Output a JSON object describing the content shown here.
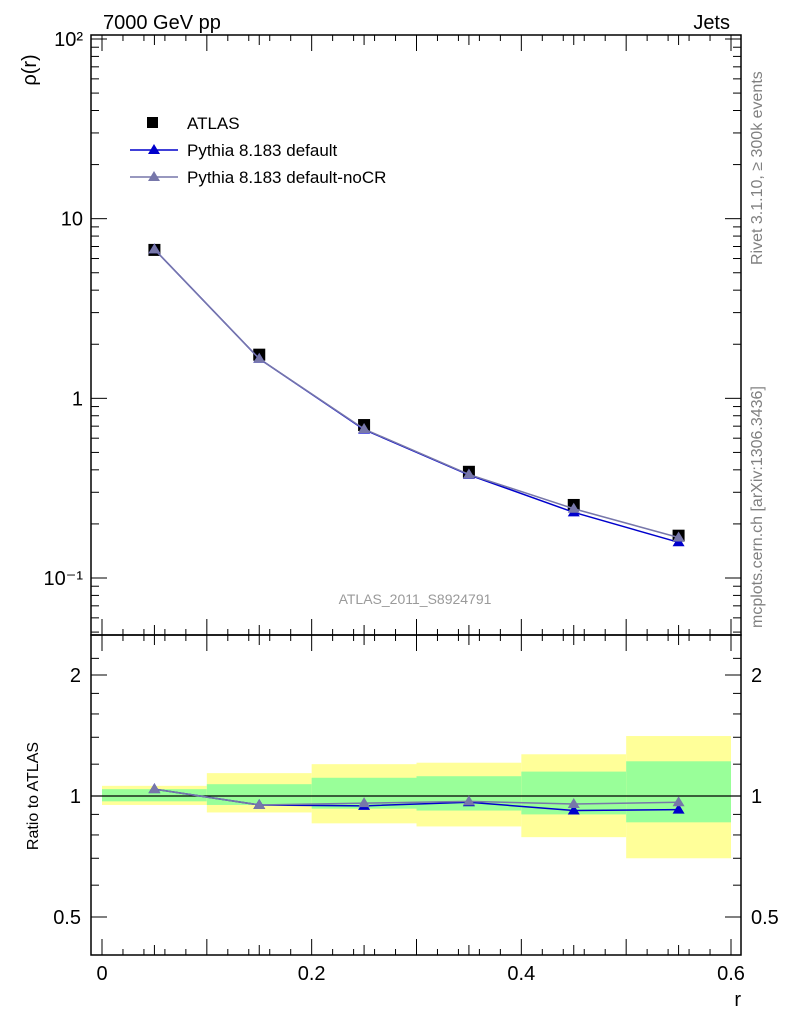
{
  "header": {
    "left": "7000 GeV pp",
    "right": "Jets"
  },
  "side_labels": {
    "rivet": "Rivet 3.1.10, ≥ 300k events",
    "mcplots": "mcplots.cern.ch [arXiv:1306.3436]"
  },
  "watermark": "ATLAS_2011_S8924791",
  "colors": {
    "atlas": "#000000",
    "default": "#0000cc",
    "nocr": "#7777aa",
    "band_inner": "#99ff99",
    "band_outer": "#ffff99"
  },
  "chart_data": [
    {
      "type": "scatter",
      "title": "",
      "xlabel": "",
      "ylabel": "ρ(r)",
      "yscale": "log",
      "ylim": [
        0.05,
        100
      ],
      "xlim": [
        -0.01,
        0.6
      ],
      "y_tick_labels": [
        "10⁻¹",
        "1",
        "10",
        "10²"
      ],
      "legend": [
        "ATLAS",
        "Pythia 8.183 default",
        "Pythia 8.183 default-noCR"
      ],
      "x": [
        0.05,
        0.15,
        0.25,
        0.35,
        0.45,
        0.55
      ],
      "series": [
        {
          "name": "ATLAS",
          "values": [
            6.7,
            1.75,
            0.71,
            0.39,
            0.255,
            0.172
          ]
        },
        {
          "name": "Pythia 8.183 default",
          "values": [
            6.75,
            1.66,
            0.67,
            0.375,
            0.232,
            0.158
          ]
        },
        {
          "name": "Pythia 8.183 default-noCR",
          "values": [
            6.75,
            1.66,
            0.675,
            0.377,
            0.243,
            0.168
          ]
        }
      ]
    },
    {
      "type": "line",
      "title": "",
      "xlabel": "r",
      "ylabel": "Ratio to ATLAS",
      "ylim": [
        0.4,
        2.4
      ],
      "xlim": [
        -0.01,
        0.6
      ],
      "x_tick_labels": [
        "0",
        "0.2",
        "0.4",
        "0.6"
      ],
      "y_tick_labels": [
        "0.5",
        "1",
        "2"
      ],
      "x": [
        0.05,
        0.15,
        0.25,
        0.35,
        0.45,
        0.55
      ],
      "bins": [
        [
          0.0,
          0.1
        ],
        [
          0.1,
          0.2
        ],
        [
          0.2,
          0.3
        ],
        [
          0.3,
          0.4
        ],
        [
          0.4,
          0.5
        ],
        [
          0.5,
          0.6
        ]
      ],
      "band_inner": [
        [
          0.97,
          1.04
        ],
        [
          0.95,
          1.07
        ],
        [
          0.93,
          1.11
        ],
        [
          0.92,
          1.12
        ],
        [
          0.9,
          1.15
        ],
        [
          0.86,
          1.22
        ]
      ],
      "band_outer": [
        [
          0.95,
          1.06
        ],
        [
          0.91,
          1.14
        ],
        [
          0.855,
          1.2
        ],
        [
          0.84,
          1.21
        ],
        [
          0.79,
          1.27
        ],
        [
          0.7,
          1.41
        ]
      ],
      "series": [
        {
          "name": "Pythia 8.183 default",
          "values": [
            1.04,
            0.95,
            0.945,
            0.965,
            0.92,
            0.925
          ]
        },
        {
          "name": "Pythia 8.183 default-noCR",
          "values": [
            1.04,
            0.95,
            0.96,
            0.97,
            0.955,
            0.965
          ]
        }
      ]
    }
  ]
}
